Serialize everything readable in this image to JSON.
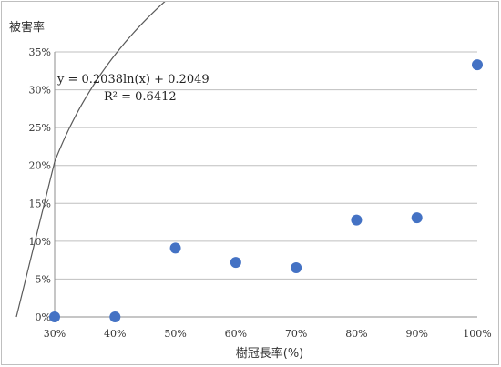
{
  "chart_data": {
    "type": "scatter",
    "ylabel": "被害率",
    "xlabel": "樹冠長率(%)",
    "x_ticks": [
      "30%",
      "40%",
      "50%",
      "60%",
      "70%",
      "80%",
      "90%",
      "100%"
    ],
    "y_ticks": [
      "0%",
      "5%",
      "10%",
      "15%",
      "20%",
      "25%",
      "30%",
      "35%"
    ],
    "xlim": [
      30,
      100
    ],
    "ylim": [
      0,
      35
    ],
    "grid": true,
    "series": [
      {
        "x": [
          30,
          40,
          50,
          60,
          70,
          80,
          90,
          100
        ],
        "y": [
          0,
          0,
          9.1,
          7.2,
          6.5,
          12.8,
          13.1,
          33.3
        ],
        "color": "#4472c4"
      }
    ],
    "trendline": {
      "type": "log",
      "a": 0.2038,
      "b": 0.2049,
      "equation": "y = 0.2038ln(x) + 0.2049",
      "r2": "R² = 0.6412",
      "color": "#595959"
    }
  }
}
